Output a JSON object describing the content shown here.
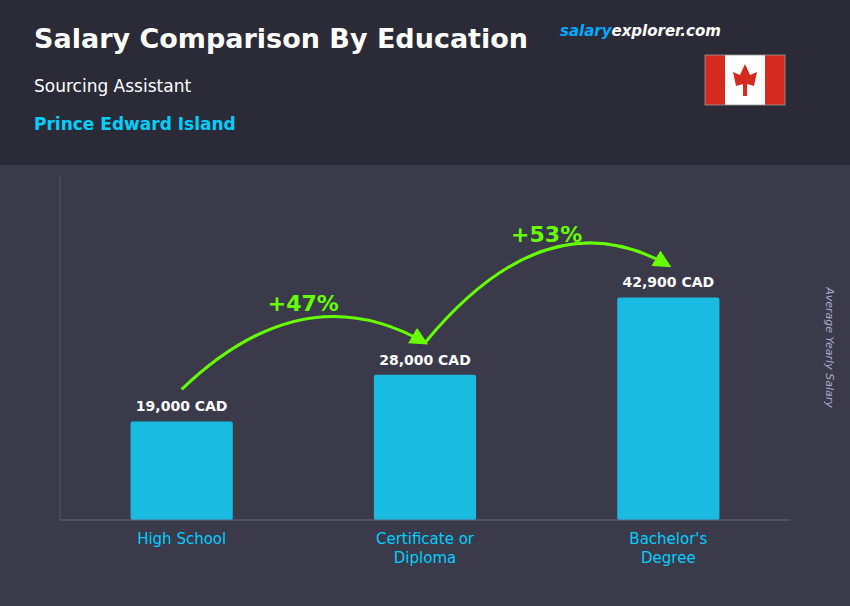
{
  "chart_data": {
    "type": "bar",
    "title": "Salary Comparison By Education",
    "subtitle": "Sourcing Assistant",
    "location": "Prince Edward Island",
    "watermark": [
      "salary",
      "explorer.com"
    ],
    "ylabel": "Average Yearly Salary",
    "categories": [
      "High School",
      "Certificate or\nDiploma",
      "Bachelor's\nDegree"
    ],
    "values": [
      19000,
      28000,
      42900
    ],
    "value_labels": [
      "19,000 CAD",
      "28,000 CAD",
      "42,900 CAD"
    ],
    "data_labels": true,
    "annotations": [
      "+47%",
      "+53%"
    ],
    "color": "#1abbe0",
    "ylim": [
      0,
      66495
    ],
    "tick_labels": "x",
    "grid": false
  }
}
